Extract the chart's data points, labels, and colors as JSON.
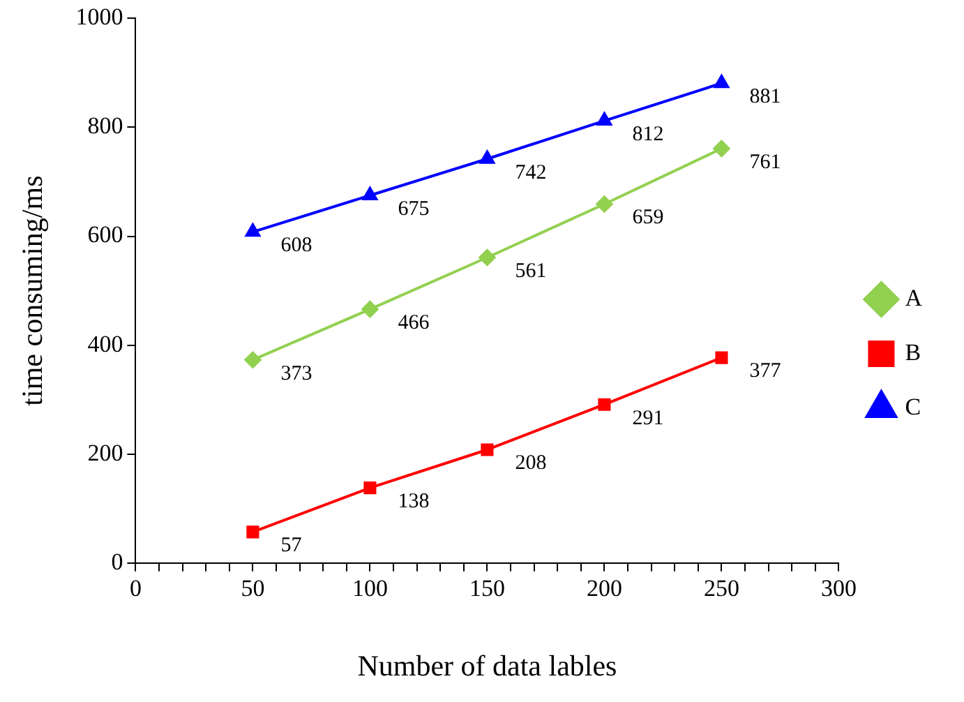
{
  "chart_data": {
    "type": "line",
    "xlabel": "Number of data lables",
    "ylabel": "time consuming/ms",
    "x": [
      50,
      100,
      150,
      200,
      250
    ],
    "series": [
      {
        "name": "A",
        "color": "#92d050",
        "marker": "diamond",
        "values": [
          373,
          466,
          561,
          659,
          761
        ]
      },
      {
        "name": "B",
        "color": "#ff0000",
        "marker": "square",
        "values": [
          57,
          138,
          208,
          291,
          377
        ]
      },
      {
        "name": "C",
        "color": "#0000ff",
        "marker": "triangle",
        "values": [
          608,
          675,
          742,
          812,
          881
        ]
      }
    ],
    "xlim": [
      0,
      300
    ],
    "xticks": [
      0,
      {
        "value": 10,
        "label": null
      },
      {
        "value": 20,
        "label": null
      },
      {
        "value": 30,
        "label": null
      },
      {
        "value": 40,
        "label": null
      },
      50,
      {
        "value": 60,
        "label": null
      },
      {
        "value": 70,
        "label": null
      },
      {
        "value": 80,
        "label": null
      },
      {
        "value": 90,
        "label": null
      },
      100,
      {
        "value": 110,
        "label": null
      },
      {
        "value": 120,
        "label": null
      },
      {
        "value": 130,
        "label": null
      },
      {
        "value": 140,
        "label": null
      },
      150,
      {
        "value": 160,
        "label": null
      },
      {
        "value": 170,
        "label": null
      },
      {
        "value": 180,
        "label": null
      },
      {
        "value": 190,
        "label": null
      },
      200,
      {
        "value": 210,
        "label": null
      },
      {
        "value": 220,
        "label": null
      },
      {
        "value": 230,
        "label": null
      },
      {
        "value": 240,
        "label": null
      },
      250,
      {
        "value": 260,
        "label": null
      },
      {
        "value": 270,
        "label": null
      },
      {
        "value": 280,
        "label": null
      },
      {
        "value": 290,
        "label": null
      },
      300
    ],
    "ylim": [
      0,
      1000
    ],
    "yticks": [
      0,
      200,
      400,
      600,
      800,
      1000
    ],
    "grid": false,
    "legend": "right",
    "data_labels": true,
    "line_style": "solid"
  }
}
